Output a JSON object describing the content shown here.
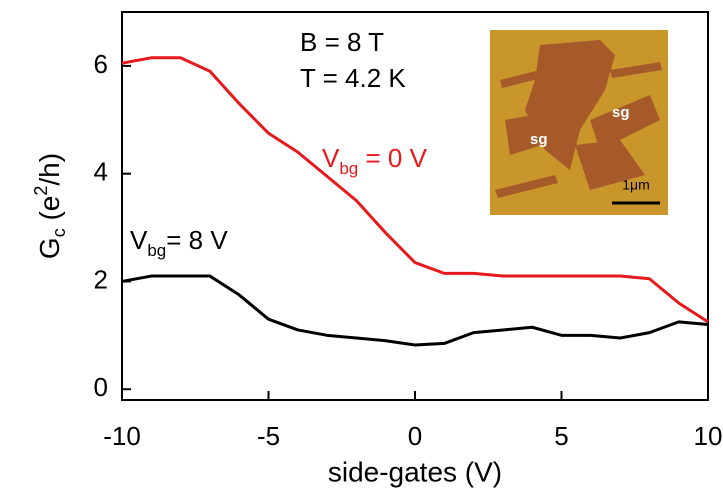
{
  "chart_data": {
    "type": "line",
    "x_label": "side-gates (V)",
    "y_label": {
      "main": "G",
      "sub": "c",
      "open": " (e",
      "sup": "2",
      "close": "/h)"
    },
    "x": [
      -10,
      -9,
      -8,
      -7,
      -6,
      -5,
      -4,
      -3,
      -2,
      -1,
      0,
      1,
      2,
      3,
      4,
      5,
      6,
      7,
      8,
      9,
      10
    ],
    "series": [
      {
        "name": {
          "main": "V",
          "sub": "bg",
          "rest": " = 0 V"
        },
        "color": "#e8191c",
        "values": [
          6.05,
          6.15,
          6.15,
          5.9,
          5.3,
          4.75,
          4.4,
          3.95,
          3.5,
          2.9,
          2.35,
          2.15,
          2.15,
          2.1,
          2.1,
          2.1,
          2.1,
          2.1,
          2.05,
          1.6,
          1.25
        ]
      },
      {
        "name": {
          "main": "V",
          "sub": "bg",
          "rest": "= 8 V"
        },
        "color": "#000000",
        "values": [
          2.0,
          2.1,
          2.1,
          2.1,
          1.75,
          1.3,
          1.1,
          1.0,
          0.95,
          0.9,
          0.82,
          0.85,
          1.05,
          1.1,
          1.15,
          1.0,
          1.0,
          0.95,
          1.05,
          1.25,
          1.2
        ]
      }
    ],
    "annotations": [
      "B = 8 T",
      "T = 4.2 K"
    ],
    "inset": {
      "labels": [
        "sg",
        "sg"
      ],
      "scale_bar": "1μm"
    },
    "xlim": [
      -10,
      10
    ],
    "xticks": [
      -10,
      -5,
      0,
      5,
      10
    ],
    "ylim": [
      -0.2,
      7
    ],
    "yticks": [
      0,
      2,
      4,
      6
    ]
  }
}
